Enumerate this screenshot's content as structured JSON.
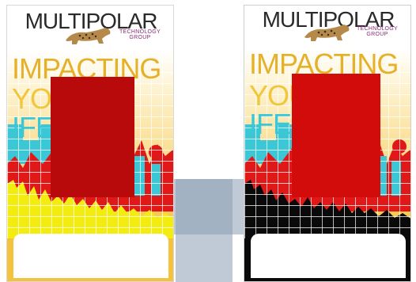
{
  "badges": [
    {
      "id": "left",
      "brand_name": "MULTIPOLAR",
      "brand_sub_line1": "TECHNOLOGY",
      "brand_sub_line2": "GROUP",
      "slogan_line1": "IMPACTING",
      "slogan_line2": "YOU",
      "slogan_line3": "IFE",
      "colors": {
        "photo": "#b80a0a",
        "skyline": "#f2ec10",
        "bg_top": "#ffffff",
        "bg_bottom": "#f7c542"
      }
    },
    {
      "id": "right",
      "brand_name": "MULTIPOLAR",
      "brand_sub_line1": "TECHNOLOGY",
      "brand_sub_line2": "GROUP",
      "slogan_line1": "IMPACTING",
      "slogan_line2": "YOU",
      "slogan_line3": "IFE",
      "colors": {
        "photo": "#d20b0b",
        "skyline": "#0a0a0a",
        "bg_top": "#ffffff",
        "bg_bottom": "#f7c542"
      }
    }
  ],
  "palette": {
    "cyan": "#3cc7d6",
    "red": "#e11818",
    "grid": "#ffffff",
    "watermark": "#8b9eb5"
  }
}
